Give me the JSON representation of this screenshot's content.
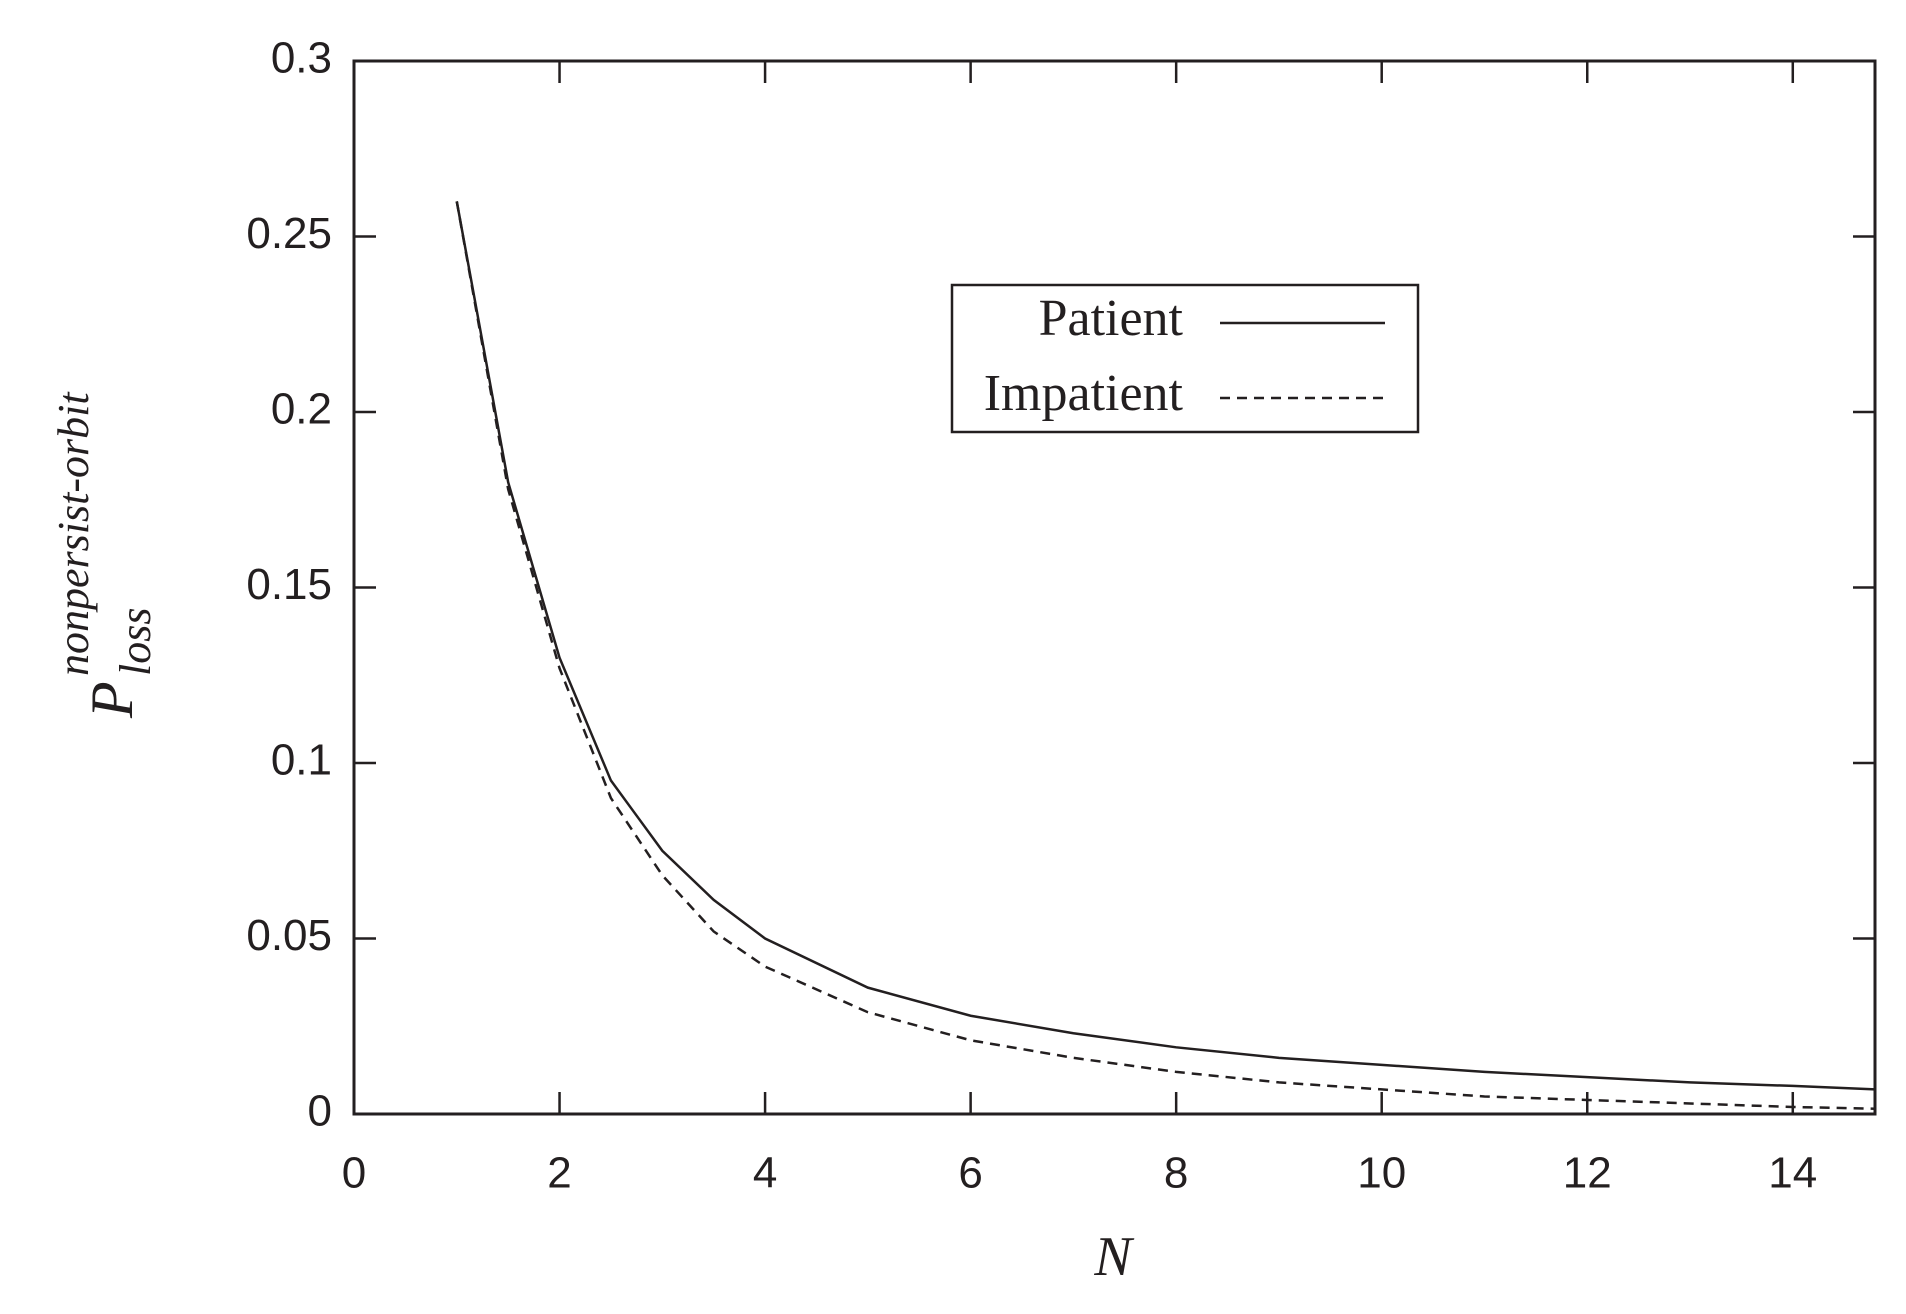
{
  "chart_data": {
    "type": "line",
    "x_label": "N",
    "y_label": {
      "base": "P",
      "sub": "loss",
      "sup": "nonpersist-orbit"
    },
    "x": [
      1,
      1.5,
      2,
      2.5,
      3,
      3.5,
      4,
      5,
      6,
      7,
      8,
      9,
      10,
      11,
      12,
      13,
      14,
      14.8
    ],
    "series": [
      {
        "name": "Patient",
        "color": "#231f20",
        "dash": "none",
        "values": [
          0.26,
          0.18,
          0.13,
          0.095,
          0.075,
          0.061,
          0.05,
          0.036,
          0.028,
          0.023,
          0.019,
          0.016,
          0.014,
          0.012,
          0.0105,
          0.009,
          0.008,
          0.007
        ]
      },
      {
        "name": "Impatient",
        "color": "#231f20",
        "dash": "10 7",
        "values": [
          0.26,
          0.178,
          0.127,
          0.09,
          0.068,
          0.052,
          0.042,
          0.029,
          0.021,
          0.016,
          0.012,
          0.009,
          0.007,
          0.005,
          0.004,
          0.003,
          0.002,
          0.0015
        ]
      }
    ],
    "xlim": [
      0,
      14.8
    ],
    "xticks": [
      0,
      2,
      4,
      6,
      8,
      10,
      12,
      14
    ],
    "ylim": [
      0,
      0.3
    ],
    "yticks": [
      0,
      0.05,
      0.1,
      0.15,
      0.2,
      0.25,
      0.3
    ],
    "grid": false
  }
}
